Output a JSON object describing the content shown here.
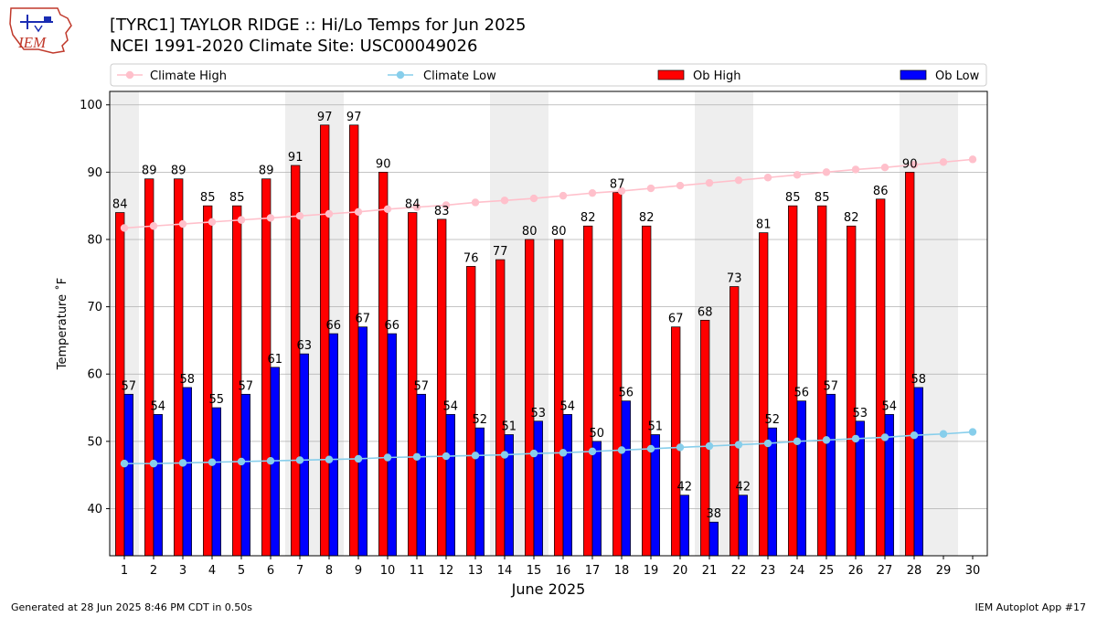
{
  "header": {
    "logo_text": "IEM",
    "title_line1": "[TYRC1] TAYLOR RIDGE :: Hi/Lo Temps for Jun 2025",
    "title_line2": "NCEI 1991-2020 Climate Site: USC00049026"
  },
  "footer": {
    "generated": "Generated at 28 Jun 2025 8:46 PM CDT in 0.50s",
    "app": "IEM Autoplot App #17"
  },
  "colors": {
    "climate_high": "#ffc0cb",
    "climate_low": "#87ceeb",
    "ob_high": "#ff0000",
    "ob_low": "#0000ff",
    "weekend_shade": "#eeeeee",
    "grid": "#b0b0b0"
  },
  "chart_data": {
    "type": "bar",
    "xlabel": "June 2025",
    "ylabel": "Temperature ˚F",
    "ylim": [
      33,
      102
    ],
    "yticks": [
      40,
      50,
      60,
      70,
      80,
      90,
      100
    ],
    "grid": "horizontal",
    "legend_placement": "top",
    "weekend_days": [
      1,
      7,
      8,
      14,
      15,
      21,
      22,
      28,
      29
    ],
    "categories": [
      1,
      2,
      3,
      4,
      5,
      6,
      7,
      8,
      9,
      10,
      11,
      12,
      13,
      14,
      15,
      16,
      17,
      18,
      19,
      20,
      21,
      22,
      23,
      24,
      25,
      26,
      27,
      28,
      29,
      30
    ],
    "series": [
      {
        "name": "Ob High",
        "kind": "bar",
        "values": [
          84,
          89,
          89,
          85,
          85,
          89,
          91,
          97,
          97,
          90,
          84,
          83,
          76,
          77,
          80,
          80,
          82,
          87,
          82,
          67,
          68,
          73,
          81,
          85,
          85,
          82,
          86,
          90,
          null,
          null
        ]
      },
      {
        "name": "Ob Low",
        "kind": "bar",
        "values": [
          57,
          54,
          58,
          55,
          57,
          61,
          63,
          66,
          67,
          66,
          57,
          54,
          52,
          51,
          53,
          54,
          50,
          56,
          51,
          42,
          38,
          42,
          52,
          56,
          57,
          53,
          54,
          58,
          null,
          null
        ]
      },
      {
        "name": "Climate High",
        "kind": "line",
        "values": [
          81.7,
          82.0,
          82.3,
          82.6,
          82.9,
          83.2,
          83.5,
          83.8,
          84.1,
          84.5,
          84.8,
          85.1,
          85.5,
          85.8,
          86.1,
          86.5,
          86.9,
          87.2,
          87.6,
          88.0,
          88.4,
          88.8,
          89.2,
          89.6,
          90.0,
          90.4,
          90.7,
          91.1,
          91.5,
          91.9
        ]
      },
      {
        "name": "Climate Low",
        "kind": "line",
        "values": [
          46.7,
          46.7,
          46.8,
          46.9,
          47.0,
          47.1,
          47.2,
          47.3,
          47.4,
          47.6,
          47.7,
          47.8,
          47.9,
          48.0,
          48.2,
          48.3,
          48.5,
          48.7,
          48.9,
          49.1,
          49.3,
          49.5,
          49.7,
          50.0,
          50.2,
          50.4,
          50.6,
          50.9,
          51.1,
          51.4
        ]
      }
    ]
  }
}
